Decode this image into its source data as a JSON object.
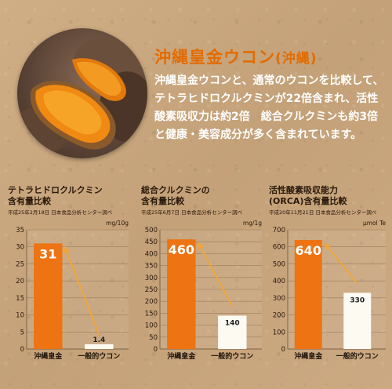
{
  "product": {
    "title": "沖縄皇金ウコン",
    "title_sub": "(沖縄)",
    "description": "沖縄皇金ウコンと、通常のウコンを比較して、テトラヒドロクルクミンが22倍含まれ、活性酸素吸収力は約2倍　総合クルクミンも約3倍と健康・美容成分が多く含まれています。"
  },
  "colors": {
    "accent": "#e36b00",
    "bar_primary": "#ee7312",
    "bar_secondary": "#fdfaf2",
    "arrow": "#f2a53a"
  },
  "chart_data": [
    {
      "type": "bar",
      "title_lines": [
        "テトラヒドロクルクミン",
        "含有量比較"
      ],
      "source": "平成25年2月18日 日本食品分析センター調べ",
      "unit": "mg/10g",
      "categories": [
        "沖縄皇金",
        "一般的ウコン"
      ],
      "values": [
        31,
        1.4
      ],
      "value_labels": [
        "31",
        "1.4"
      ],
      "ylim": [
        0,
        35
      ],
      "yticks": [
        0,
        5,
        10,
        15,
        20,
        25,
        30,
        35
      ]
    },
    {
      "type": "bar",
      "title_lines": [
        "総合クルクミンの",
        "含有量比較"
      ],
      "source": "平成25年6月7日 日本食品分析センター調べ",
      "unit": "mg/1g",
      "categories": [
        "沖縄皇金",
        "一般的ウコン"
      ],
      "values": [
        460,
        140
      ],
      "value_labels": [
        "460",
        "140"
      ],
      "ylim": [
        0,
        500
      ],
      "yticks": [
        0,
        50,
        100,
        150,
        200,
        250,
        300,
        350,
        400,
        450,
        500
      ]
    },
    {
      "type": "bar",
      "title_lines": [
        "活性酸素吸収能力",
        "(ORCA)含有量比較"
      ],
      "source": "平成20年11月21日 日本食品分析センター調べ",
      "unit": "μmol Te",
      "categories": [
        "沖縄皇金",
        "一般的ウコン"
      ],
      "values": [
        640,
        330
      ],
      "value_labels": [
        "640",
        "330"
      ],
      "ylim": [
        0,
        700
      ],
      "yticks": [
        0,
        100,
        200,
        300,
        400,
        500,
        600,
        700
      ]
    }
  ]
}
